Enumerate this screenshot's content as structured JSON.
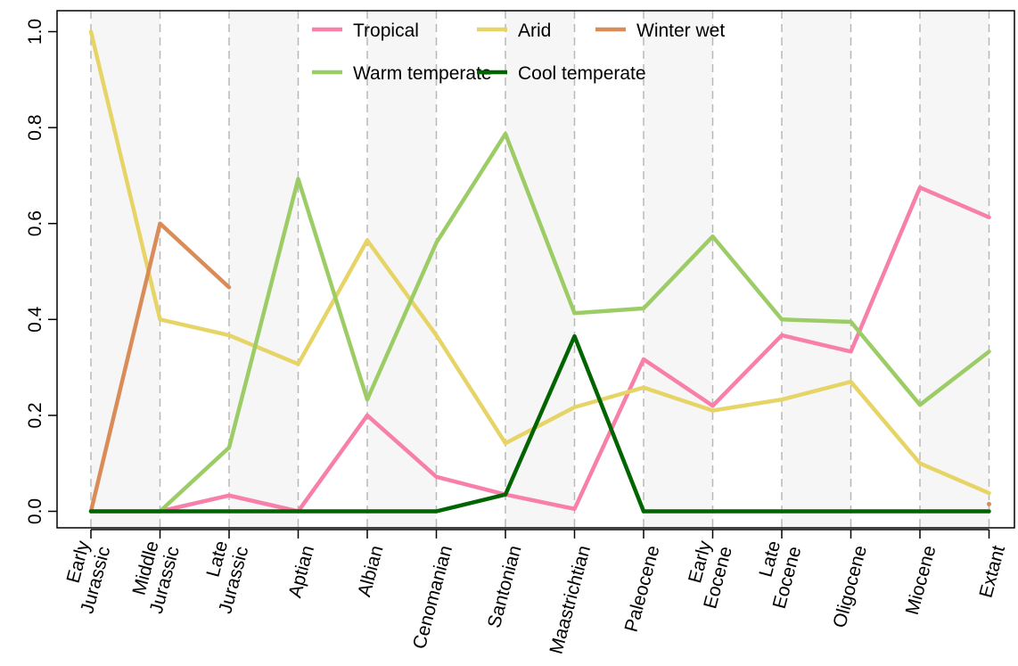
{
  "chart_data": {
    "type": "line",
    "title": "",
    "xlabel": "",
    "ylabel": "",
    "categories": [
      "Early Jurassic",
      "Middle Jurassic",
      "Late Jurassic",
      "Aptian",
      "Albian",
      "Cenomanian",
      "Santonian",
      "Maastrichtian",
      "Paleocene",
      "Early Eocene",
      "Late Eocene",
      "Oligocene",
      "Miocene",
      "Extant"
    ],
    "category_lines": [
      [
        "Early",
        "Jurassic"
      ],
      [
        "Middle",
        "Jurassic"
      ],
      [
        "Late",
        "Jurassic"
      ],
      [
        "Aptian"
      ],
      [
        "Albian"
      ],
      [
        "Cenomanian"
      ],
      [
        "Santonian"
      ],
      [
        "Maastrichtian"
      ],
      [
        "Paleocene"
      ],
      [
        "Early",
        "Eocene"
      ],
      [
        "Late",
        "Eocene"
      ],
      [
        "Oligocene"
      ],
      [
        "Miocene"
      ],
      [
        "Extant"
      ]
    ],
    "ylim": [
      0,
      1.0
    ],
    "yticks": [
      0.0,
      0.2,
      0.4,
      0.6,
      0.8,
      1.0
    ],
    "ytick_labels": [
      "0.0",
      "0.2",
      "0.4",
      "0.6",
      "0.8",
      "1.0"
    ],
    "grid": "dashed vertical lines at each category, alternating shaded bands",
    "legend_position": "top-center",
    "series": [
      {
        "name": "Tropical",
        "color": "#f77fa8",
        "values": [
          0,
          0,
          0.033,
          0,
          0.2,
          0.072,
          0.035,
          0.005,
          0.317,
          0.22,
          0.367,
          0.333,
          0.675,
          0.613
        ]
      },
      {
        "name": "Arid",
        "color": "#e7d467",
        "values": [
          1.0,
          0.4,
          0.367,
          0.307,
          0.565,
          0.367,
          0.142,
          0.217,
          0.258,
          0.21,
          0.233,
          0.27,
          0.1,
          0.038
        ]
      },
      {
        "name": "Winter wet",
        "color": "#d98c58",
        "values": [
          0,
          0.6,
          0.467,
          null,
          null,
          null,
          null,
          null,
          null,
          null,
          null,
          null,
          null,
          0.015
        ]
      },
      {
        "name": "Warm temperate",
        "color": "#9ccc65",
        "values": [
          null,
          0,
          0.133,
          0.693,
          0.233,
          0.56,
          0.787,
          0.413,
          0.423,
          0.573,
          0.4,
          0.395,
          0.222,
          0.333
        ]
      },
      {
        "name": "Cool temperate",
        "color": "#006400",
        "values": [
          0,
          0,
          0,
          0,
          0,
          0,
          0.035,
          0.365,
          0,
          0,
          0,
          0,
          0,
          0
        ]
      }
    ],
    "legend_rows": [
      [
        "Tropical",
        "Arid",
        "Winter wet"
      ],
      [
        "Warm temperate",
        "Cool temperate"
      ]
    ]
  }
}
